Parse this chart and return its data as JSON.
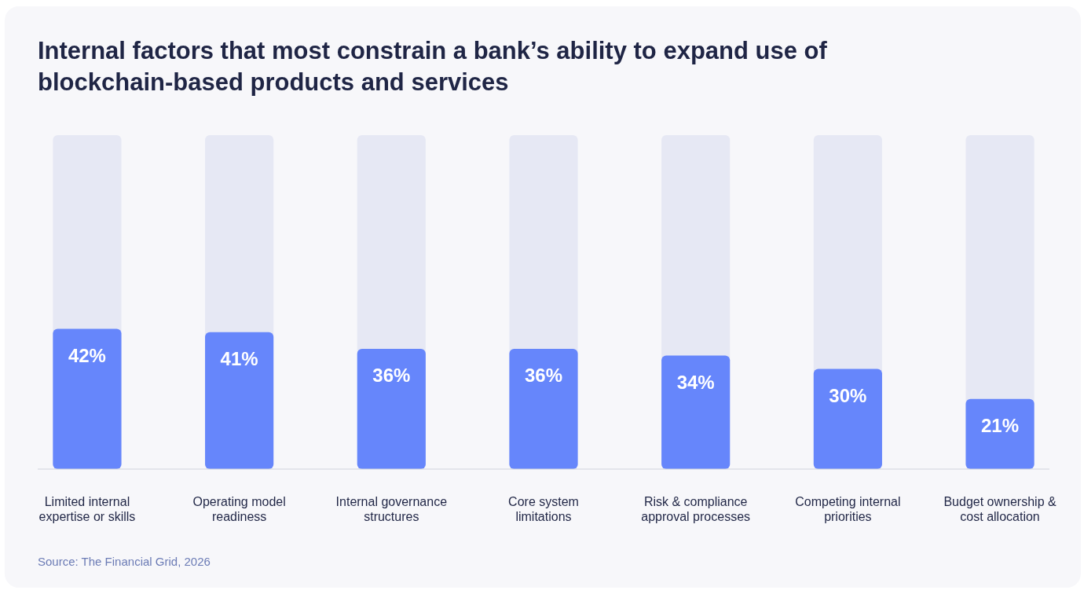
{
  "chart_data": {
    "type": "bar",
    "title": "Internal factors that most constrain a bank’s ability to expand use of blockchain-based products and services",
    "categories": [
      "Limited internal expertise or skills",
      "Operating model readiness",
      "Internal governance structures",
      "Core system limitations",
      "Risk & compliance approval processes",
      "Competing internal priorities",
      "Budget ownership & cost allocation"
    ],
    "values": [
      42,
      41,
      36,
      36,
      34,
      30,
      21
    ],
    "color": "#6686fb",
    "ylim": [
      0,
      100
    ],
    "data_labels": true,
    "value_labels": [
      "42%",
      "41%",
      "36%",
      "36%",
      "34%",
      "30%",
      "21%"
    ],
    "annotations": [
      "Source: The Financial Grid, 2026"
    ]
  }
}
